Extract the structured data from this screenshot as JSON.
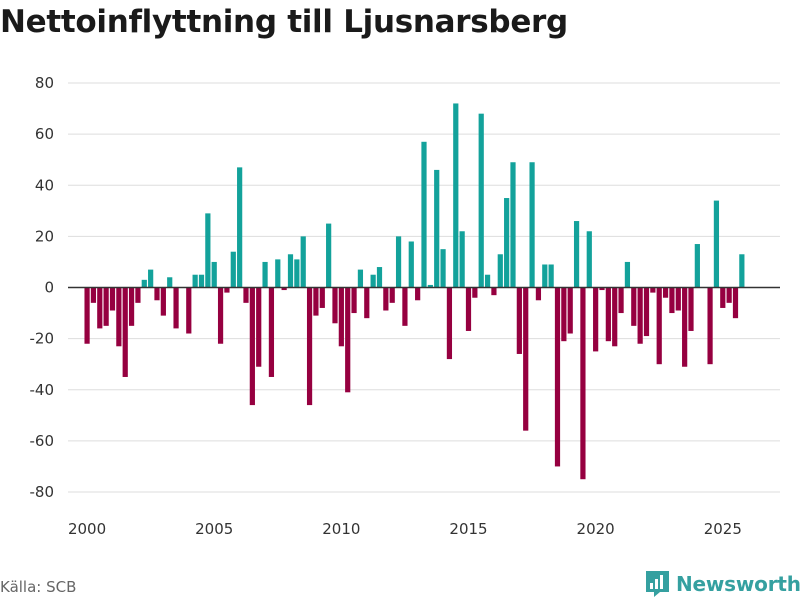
{
  "title": "Nettoinflyttning till Ljusnarsberg",
  "source": "Källa: SCB",
  "brand": "Newsworthy",
  "colors": {
    "positive": "#13a29b",
    "negative": "#960040",
    "grid": "#dddddd",
    "zero": "#333333",
    "brand": "#35a0a0"
  },
  "chart_data": {
    "type": "bar",
    "title": "Nettoinflyttning till Ljusnarsberg",
    "xlabel": "",
    "ylabel": "",
    "frequency": "quarterly",
    "x_start": 2000.0,
    "x_step": 0.25,
    "xlim": [
      1999.25,
      2027.25
    ],
    "ylim": [
      -85,
      85
    ],
    "x_ticks": [
      2000,
      2005,
      2010,
      2015,
      2020,
      2025
    ],
    "y_ticks": [
      -80,
      -60,
      -40,
      -20,
      0,
      20,
      40,
      60,
      80
    ],
    "values": [
      -22,
      -6,
      -16,
      -15,
      -9,
      -23,
      -35,
      -15,
      -6,
      3,
      7,
      -5,
      -11,
      4,
      -16,
      0,
      -18,
      5,
      5,
      29,
      10,
      -22,
      -2,
      14,
      47,
      -6,
      -46,
      -31,
      10,
      -35,
      11,
      -1,
      13,
      11,
      20,
      -46,
      -11,
      -8,
      25,
      -14,
      -23,
      -41,
      -10,
      7,
      -12,
      5,
      8,
      -9,
      -6,
      20,
      -15,
      18,
      -5,
      57,
      1,
      46,
      15,
      -28,
      72,
      22,
      -17,
      -4,
      68,
      5,
      -3,
      13,
      35,
      49,
      -26,
      -56,
      49,
      -5,
      9,
      9,
      -70,
      -21,
      -18,
      26,
      -75,
      22,
      -25,
      -1,
      -21,
      -23,
      -10,
      10,
      -15,
      -22,
      -19,
      -2,
      -30,
      -4,
      -10,
      -9,
      -31,
      -17,
      17,
      0,
      -30,
      34,
      -8,
      -6,
      -12,
      13
    ]
  }
}
